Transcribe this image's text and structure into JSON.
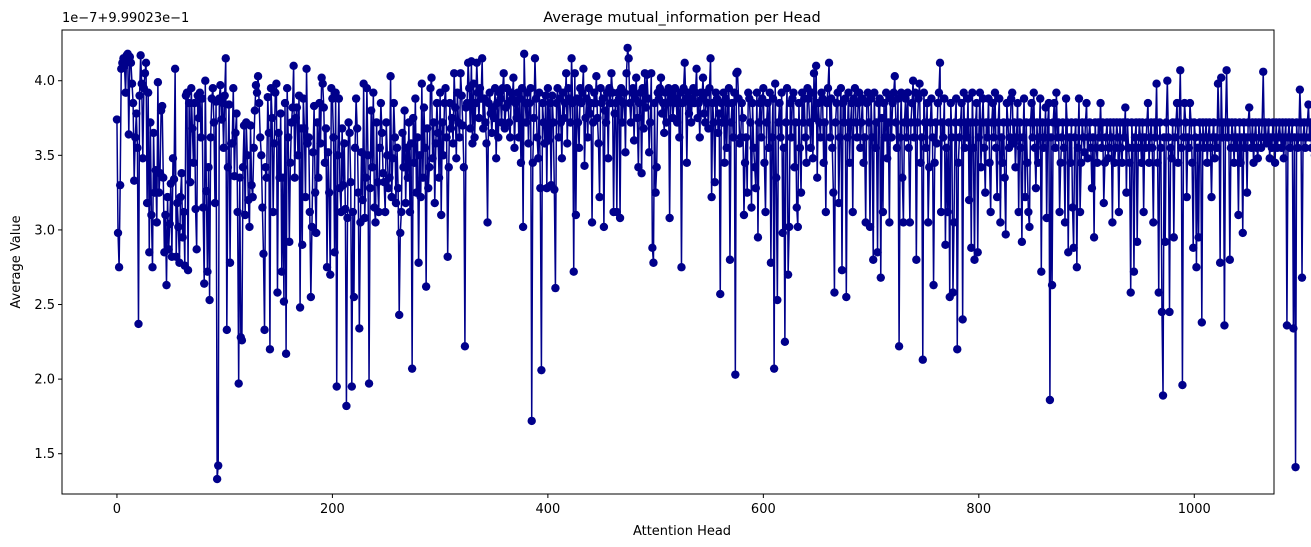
{
  "chart_data": {
    "type": "line",
    "title": "Average mutual_information per Head",
    "xlabel": "Attention Head",
    "ylabel": "Average Value",
    "offset_text": "1e−7+9.99023e−1",
    "xlim": [
      -51,
      1074
    ],
    "ylim": [
      1.23,
      4.34
    ],
    "xticks": [
      0,
      200,
      400,
      600,
      800,
      1000
    ],
    "xtick_labels": [
      "0",
      "200",
      "400",
      "600",
      "800",
      "1000"
    ],
    "yticks": [
      1.5,
      2.0,
      2.5,
      3.0,
      3.5,
      4.0
    ],
    "ytick_labels": [
      "1.5",
      "2.0",
      "2.5",
      "3.0",
      "3.5",
      "4.0"
    ],
    "series": [
      {
        "name": "mutual_information",
        "color": "#00008b",
        "marker": "circle",
        "x_start": 0,
        "x_step": 1,
        "values": [
          3.74,
          2.98,
          2.75,
          3.3,
          4.08,
          4.12,
          4.15,
          4.1,
          3.92,
          4.17,
          4.18,
          3.64,
          4.16,
          4.12,
          3.98,
          3.85,
          3.33,
          3.62,
          3.78,
          3.55,
          2.37,
          3.9,
          4.17,
          3.98,
          3.48,
          3.95,
          4.05,
          4.12,
          3.18,
          3.92,
          2.85,
          3.72,
          3.1,
          2.75,
          3.65,
          3.25,
          3.4,
          3.05,
          3.99,
          3.25,
          3.38,
          3.8,
          3.83,
          3.35,
          2.85,
          3.1,
          2.63,
          3.22,
          2.87,
          3.04,
          3.31,
          2.82,
          3.48,
          3.34,
          4.08,
          2.82,
          3.18,
          3.02,
          2.78,
          3.22,
          3.38,
          2.95,
          3.12,
          2.76,
          3.9,
          3.92,
          2.73,
          3.85,
          3.32,
          3.95,
          3.68,
          3.45,
          3.85,
          3.14,
          2.87,
          3.9,
          3.75,
          3.92,
          3.62,
          3.88,
          3.15,
          2.64,
          4.0,
          3.26,
          2.72,
          3.42,
          2.53,
          3.62,
          3.88,
          3.95,
          3.72,
          3.18,
          3.86,
          1.33,
          1.42,
          3.88,
          3.97,
          3.74,
          3.85,
          3.55,
          3.9,
          4.15,
          2.33,
          3.42,
          3.84,
          2.78,
          3.58,
          3.58,
          3.95,
          3.36,
          3.65,
          3.78,
          3.12,
          1.97,
          3.35,
          2.28,
          2.26,
          3.42,
          3.7,
          3.1,
          3.72,
          3.5,
          3.2,
          3.02,
          3.7,
          3.3,
          3.22,
          3.55,
          3.8,
          3.97,
          3.92,
          4.03,
          3.85,
          3.62,
          3.5,
          3.15,
          2.84,
          2.33,
          3.42,
          3.35,
          3.89,
          3.65,
          2.2,
          3.95,
          3.75,
          3.12,
          3.58,
          3.92,
          3.98,
          2.58,
          3.65,
          3.35,
          3.78,
          2.72,
          3.35,
          2.52,
          3.85,
          2.17,
          3.95,
          3.62,
          2.92,
          3.45,
          3.72,
          3.82,
          4.1,
          3.35,
          3.75,
          3.82,
          3.5,
          3.9,
          2.48,
          3.68,
          2.9,
          3.88,
          3.68,
          3.22,
          4.08,
          3.58,
          3.62,
          3.12,
          2.55,
          3.02,
          3.52,
          3.83,
          3.25,
          2.98,
          3.72,
          3.35,
          3.85,
          3.58,
          4.02,
          3.98,
          3.82,
          3.45,
          3.68,
          2.75,
          3.52,
          3.25,
          2.7,
          3.95,
          3.88,
          3.62,
          2.85,
          3.92,
          1.95,
          3.5,
          3.88,
          3.28,
          3.12,
          3.68,
          3.3,
          3.58,
          3.14,
          1.82,
          3.08,
          3.72,
          3.65,
          3.32,
          1.95,
          3.12,
          2.55,
          3.55,
          3.88,
          3.68,
          3.25,
          2.34,
          3.05,
          3.52,
          3.2,
          3.98,
          3.08,
          3.35,
          3.95,
          3.5,
          1.97,
          3.28,
          3.8,
          3.42,
          3.92,
          3.15,
          3.05,
          3.72,
          3.32,
          3.12,
          3.55,
          3.85,
          3.65,
          3.38,
          3.32,
          3.12,
          3.72,
          3.5,
          3.28,
          3.35,
          4.03,
          3.22,
          3.48,
          3.85,
          3.62,
          3.18,
          3.55,
          3.28,
          2.43,
          2.98,
          3.12,
          3.65,
          3.42,
          3.8,
          3.18,
          3.55,
          3.35,
          3.72,
          3.12,
          3.58,
          2.07,
          3.75,
          3.45,
          3.88,
          3.25,
          3.62,
          2.78,
          3.5,
          3.22,
          3.98,
          3.35,
          3.82,
          3.55,
          2.62,
          3.68,
          3.28,
          3.42,
          3.95,
          4.02,
          3.48,
          3.72,
          3.18,
          3.58,
          3.85,
          3.65,
          3.35,
          3.92,
          3.1,
          3.72,
          3.5,
          3.85,
          3.95,
          3.62,
          2.82,
          3.42,
          3.85,
          3.68,
          3.75,
          3.58,
          4.05,
          3.82,
          3.48,
          3.92,
          3.72,
          3.62,
          4.05,
          3.9,
          3.7,
          3.42,
          2.22,
          3.82,
          3.85,
          4.12,
          3.95,
          3.68,
          4.13,
          3.58,
          3.98,
          3.62,
          3.85,
          4.12,
          3.92,
          3.75,
          3.95,
          3.88,
          4.15,
          3.68,
          3.88,
          3.72,
          3.58,
          3.05,
          3.85,
          3.92,
          3.78,
          3.65,
          3.82,
          3.75,
          3.95,
          3.48,
          3.85,
          3.62,
          3.92,
          3.88,
          3.72,
          3.95,
          4.05,
          3.68,
          3.82,
          3.95,
          3.85,
          3.72,
          3.62,
          3.92,
          3.88,
          4.02,
          3.55,
          3.85,
          3.75,
          3.92,
          3.62,
          3.88,
          3.45,
          3.95,
          3.02,
          4.18,
          3.85,
          3.72,
          3.92,
          3.58,
          3.85,
          3.95,
          1.72,
          3.45,
          3.75,
          4.15,
          3.88,
          3.62,
          3.48,
          3.92,
          3.28,
          2.06,
          3.85,
          3.72,
          3.58,
          3.9,
          3.28,
          3.95,
          3.6,
          3.85,
          3.3,
          3.9,
          3.72,
          3.27,
          2.61,
          3.85,
          3.95,
          3.62,
          3.88,
          3.72,
          3.48,
          3.92,
          3.75,
          3.85,
          4.05,
          3.58,
          3.95,
          3.88,
          3.72,
          4.15,
          3.85,
          2.72,
          4.05,
          3.1,
          3.88,
          3.72,
          3.55,
          3.95,
          3.85,
          3.92,
          4.08,
          3.43,
          3.75,
          3.88,
          3.62,
          3.95,
          3.78,
          3.85,
          3.05,
          3.72,
          3.92,
          3.85,
          4.03,
          3.75,
          3.58,
          3.22,
          3.95,
          3.85,
          3.88,
          3.02,
          3.8,
          3.72,
          3.92,
          3.48,
          3.95,
          3.85,
          4.05,
          3.92,
          3.12,
          3.78,
          3.85,
          3.12,
          3.92,
          3.88,
          3.08,
          3.95,
          3.72,
          3.85,
          3.92,
          3.52,
          4.05,
          4.22,
          4.15,
          3.85,
          3.72,
          3.92,
          3.95,
          3.6,
          3.88,
          4.02,
          3.75,
          3.42,
          3.85,
          3.92,
          3.38,
          3.95,
          3.68,
          4.05,
          3.82,
          4.04,
          3.88,
          3.52,
          3.72,
          4.05,
          2.88,
          2.78,
          3.85,
          3.25,
          3.42,
          3.92,
          3.88,
          3.95,
          4.02,
          3.78,
          3.85,
          3.65,
          3.92,
          3.72,
          3.85,
          3.95,
          3.08,
          3.88,
          3.92,
          3.75,
          3.85,
          3.95,
          3.88,
          3.72,
          3.85,
          3.62,
          3.92,
          2.75,
          3.85,
          3.95,
          4.12,
          3.88,
          3.45,
          3.92,
          3.78,
          3.85,
          3.72,
          3.88,
          3.95,
          3.85,
          3.92,
          4.08,
          3.75,
          3.85,
          3.62,
          3.92,
          3.88,
          4.02,
          3.78,
          3.72,
          3.92,
          3.85,
          3.68,
          3.95,
          4.15,
          3.22,
          3.85,
          3.72,
          3.32,
          3.92,
          3.88,
          3.65,
          3.78,
          2.57,
          3.85,
          3.72,
          3.92,
          3.45,
          3.88,
          3.55,
          3.85,
          3.95,
          2.8,
          3.72,
          3.85,
          3.62,
          3.92,
          2.03,
          4.05,
          4.06,
          3.88,
          3.58,
          3.62,
          3.85,
          3.75,
          3.1,
          3.45,
          3.62,
          3.25,
          3.92,
          3.88,
          3.72,
          3.15,
          3.85,
          3.55,
          3.42,
          3.28,
          3.92,
          2.95,
          3.72,
          3.85,
          3.62,
          3.88,
          3.95,
          3.45,
          3.12,
          3.72,
          3.85,
          3.55,
          3.92,
          2.78,
          3.62,
          3.88,
          2.07,
          3.98,
          3.35,
          2.53,
          3.72,
          3.85,
          3.62,
          3.92,
          2.98,
          3.55,
          2.25,
          3.72,
          3.95,
          2.7,
          3.02,
          3.85,
          3.62,
          3.88,
          3.92,
          3.42,
          3.72,
          3.15,
          3.02,
          3.85,
          3.55,
          3.25,
          3.92,
          3.72,
          3.88,
          3.62,
          3.45,
          3.95,
          3.88,
          3.72,
          3.55,
          3.92,
          3.48,
          4.05,
          3.75,
          4.1,
          3.35,
          3.85,
          3.72,
          3.62,
          3.92,
          3.88,
          3.45,
          3.72,
          3.12,
          3.85,
          3.95,
          4.12,
          3.62,
          3.88,
          3.55,
          3.25,
          2.58,
          3.72,
          3.85,
          3.92,
          3.18,
          3.62,
          3.95,
          2.73,
          3.85,
          3.72,
          3.88,
          2.55,
          3.62,
          3.92,
          3.45,
          3.72,
          3.85,
          3.12,
          3.88,
          3.95,
          3.72,
          3.62,
          3.85,
          3.92,
          3.55,
          3.72,
          3.88,
          3.45,
          3.62,
          3.05,
          3.85,
          3.92,
          3.72,
          3.02,
          3.88,
          3.62,
          2.8,
          3.92,
          3.55,
          3.72,
          2.85,
          3.85,
          3.88,
          2.68,
          3.75,
          3.12,
          3.85,
          3.62,
          3.92,
          3.48,
          3.72,
          3.05,
          3.88,
          3.62,
          3.85,
          3.92,
          4.03,
          3.72,
          3.55,
          3.88,
          2.22,
          3.62,
          3.92,
          3.35,
          3.05,
          3.72,
          3.88,
          3.62,
          3.92,
          3.55,
          3.05,
          3.72,
          3.85,
          4.0,
          3.62,
          3.92,
          2.8,
          3.72,
          3.88,
          3.98,
          3.45,
          3.62,
          2.13,
          3.92,
          3.72,
          3.55,
          3.85,
          3.05,
          3.42,
          3.72,
          3.88,
          3.62,
          2.63,
          3.45,
          3.72,
          3.58,
          3.85,
          3.92,
          4.12,
          3.12,
          3.72,
          3.62,
          3.88,
          2.9,
          3.55,
          3.12,
          3.72,
          2.55,
          3.85,
          3.62,
          2.58,
          3.05,
          3.72,
          3.88,
          2.2,
          3.45,
          3.62,
          3.72,
          3.85,
          2.4,
          3.92,
          3.55,
          3.72,
          3.62,
          3.88,
          3.2,
          3.72,
          2.88,
          3.92,
          3.55,
          2.8,
          3.72,
          3.85,
          2.85,
          3.62,
          3.92,
          3.42,
          3.72,
          3.88,
          3.55,
          3.25,
          3.72,
          3.62,
          3.88,
          3.45,
          3.12,
          3.72,
          3.85,
          3.62,
          3.92,
          3.55,
          3.22,
          3.72,
          3.88,
          3.05,
          3.62,
          3.45,
          3.72,
          3.35,
          2.97,
          3.85,
          3.72,
          3.55,
          3.62,
          3.88,
          3.92,
          3.58,
          3.72,
          3.42,
          3.62,
          3.85,
          3.12,
          3.72,
          3.55,
          2.92,
          3.62,
          3.88,
          3.22,
          3.72,
          3.45,
          3.12,
          3.02,
          3.72,
          3.85,
          3.62,
          3.92,
          3.55,
          3.28,
          3.72,
          3.45,
          3.62,
          3.88,
          2.72,
          3.72,
          3.55,
          3.62,
          3.82,
          3.08,
          3.72,
          3.85,
          1.86,
          3.62,
          2.63,
          3.72,
          3.85,
          3.55,
          3.92,
          3.62,
          3.72,
          3.12,
          3.45,
          3.62,
          3.72,
          3.55,
          3.05,
          3.88,
          3.72,
          2.85,
          3.62,
          3.45,
          3.72,
          3.15,
          2.88,
          3.62,
          3.72,
          2.75,
          3.55,
          3.88,
          3.12,
          3.45,
          3.72,
          3.62,
          3.52,
          3.72,
          3.85,
          3.48,
          3.62,
          3.72,
          3.55,
          3.28,
          3.62,
          2.95,
          3.72,
          3.55,
          3.45,
          3.72,
          3.62,
          3.85,
          3.55,
          3.72,
          3.18,
          3.45,
          3.62,
          3.72,
          3.48,
          3.55,
          3.72,
          3.62,
          3.05,
          3.72,
          3.45,
          3.55,
          3.72,
          3.62,
          3.12,
          3.72,
          3.55,
          3.45,
          3.72,
          3.62,
          3.82,
          3.25,
          3.72,
          3.55,
          3.45,
          2.58,
          3.72,
          3.55,
          2.72,
          3.62,
          3.72,
          2.92,
          3.55,
          3.72,
          3.62,
          3.45,
          3.72,
          3.12,
          3.62,
          3.55,
          3.72,
          3.85,
          3.45,
          3.62,
          3.72,
          3.55,
          3.05,
          3.72,
          3.62,
          3.98,
          3.45,
          2.58,
          3.72,
          3.55,
          2.45,
          1.89,
          3.62,
          2.92,
          3.72,
          4.0,
          3.62,
          2.45,
          3.55,
          3.48,
          3.72,
          2.95,
          3.62,
          3.72,
          3.85,
          3.45,
          3.72,
          4.07,
          3.55,
          1.96,
          3.62,
          3.85,
          3.72,
          3.22,
          3.62,
          3.55,
          3.85,
          3.72,
          3.45,
          2.88,
          3.72,
          3.62,
          2.75,
          3.55,
          2.95,
          3.72,
          3.62,
          2.38,
          3.72,
          3.55,
          3.62,
          3.72,
          3.45,
          3.62,
          3.72,
          3.55,
          3.22,
          3.62,
          3.72,
          3.48,
          3.62,
          3.55,
          3.98,
          3.72,
          2.78,
          4.02,
          3.62,
          3.72,
          2.36,
          3.72,
          4.07,
          3.62,
          3.72,
          2.8,
          3.55,
          3.72,
          3.62,
          3.45,
          3.72,
          3.55,
          3.62,
          3.1,
          3.72,
          3.45,
          3.62,
          2.98,
          3.72,
          3.55,
          3.62,
          3.25,
          3.72,
          3.82,
          3.62,
          3.55,
          3.72,
          3.45,
          3.62,
          3.72,
          3.55,
          3.48,
          3.72,
          3.62,
          3.55,
          3.72,
          4.06,
          3.62,
          3.72,
          3.58,
          3.62,
          3.72,
          3.48,
          3.62,
          3.55,
          3.72,
          3.62,
          3.45,
          3.72,
          3.55,
          3.62,
          3.72,
          3.62,
          3.55,
          3.72,
          3.48,
          3.62,
          3.72,
          2.36,
          3.62,
          3.72,
          3.55,
          3.62,
          3.72,
          2.34,
          3.62,
          1.41,
          3.72,
          3.55,
          3.62,
          3.94,
          3.72,
          2.68,
          3.62,
          3.72,
          3.55,
          3.62,
          3.72,
          3.84,
          3.62,
          3.72,
          3.55,
          3.62,
          3.72,
          3.5,
          3.12,
          3.77
        ]
      }
    ]
  }
}
